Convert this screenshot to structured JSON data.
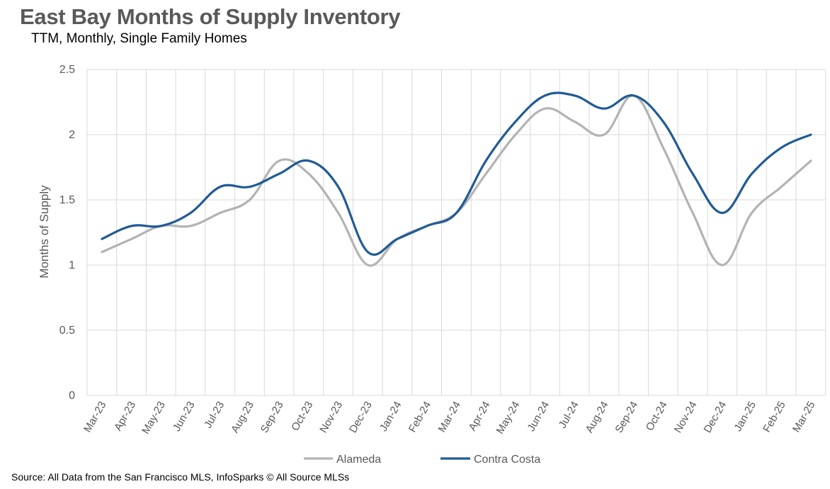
{
  "title": "East Bay Months of Supply Inventory",
  "subtitle": "TTM, Monthly, Single Family Homes",
  "source": "Source: All Data from the San Francisco MLS, InfoSparks © All Source MLSs",
  "chart_data": {
    "type": "line",
    "ylabel": "Months of Supply",
    "xlabel": "",
    "ylim": [
      0,
      2.5
    ],
    "yticks": [
      "0",
      "0.5",
      "1",
      "1.5",
      "2",
      "2.5"
    ],
    "grid": true,
    "legend_position": "bottom",
    "categories": [
      "Mar-23",
      "Apr-23",
      "May-23",
      "Jun-23",
      "Jul-23",
      "Aug-23",
      "Sep-23",
      "Oct-23",
      "Nov-23",
      "Dec-23",
      "Jan-24",
      "Feb-24",
      "Mar-24",
      "Apr-24",
      "May-24",
      "Jun-24",
      "Jul-24",
      "Aug-24",
      "Sep-24",
      "Oct-24",
      "Nov-24",
      "Dec-24",
      "Jan-25",
      "Feb-25",
      "Mar-25"
    ],
    "series": [
      {
        "name": "Alameda",
        "color": "#b3b3b3",
        "values": [
          1.1,
          1.2,
          1.3,
          1.3,
          1.4,
          1.5,
          1.8,
          1.7,
          1.4,
          1.0,
          1.2,
          1.3,
          1.4,
          1.7,
          2.0,
          2.2,
          2.1,
          2.0,
          2.3,
          1.9,
          1.4,
          1.0,
          1.4,
          1.6,
          1.8
        ]
      },
      {
        "name": "Contra Costa",
        "color": "#1f5a96",
        "values": [
          1.2,
          1.3,
          1.3,
          1.4,
          1.6,
          1.6,
          1.7,
          1.8,
          1.6,
          1.1,
          1.2,
          1.3,
          1.4,
          1.8,
          2.1,
          2.3,
          2.3,
          2.2,
          2.3,
          2.1,
          1.7,
          1.4,
          1.7,
          1.9,
          2.0
        ]
      }
    ]
  }
}
